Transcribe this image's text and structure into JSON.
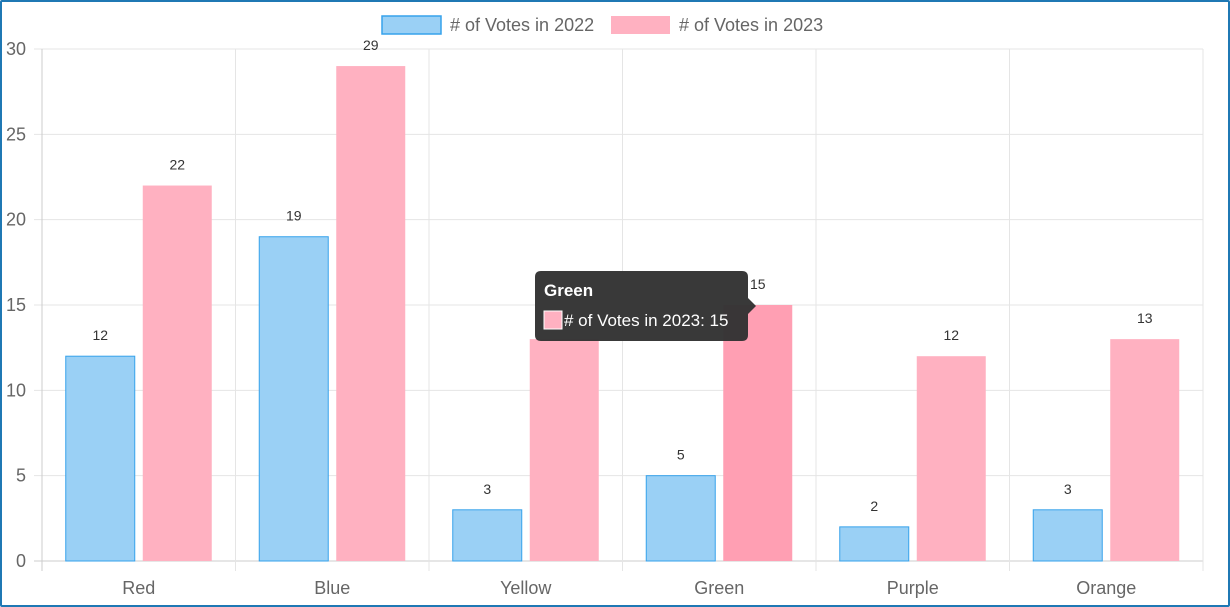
{
  "chart_data": {
    "type": "bar",
    "categories": [
      "Red",
      "Blue",
      "Yellow",
      "Green",
      "Purple",
      "Orange"
    ],
    "series": [
      {
        "name": "# of Votes in 2022",
        "values": [
          12,
          19,
          3,
          5,
          2,
          3
        ],
        "fill": "#9ad0f5",
        "stroke": "#36a2eb"
      },
      {
        "name": "# of Votes in 2023",
        "values": [
          22,
          29,
          13,
          15,
          12,
          13
        ],
        "fill": "#ffb1c1",
        "stroke": "#ff6384"
      }
    ],
    "ylim": [
      0,
      30
    ],
    "yticks": [
      0,
      5,
      10,
      15,
      20,
      25,
      30
    ],
    "grid": true,
    "legend": "top-center",
    "data_labels": true,
    "hovered": {
      "series_index": 1,
      "category_index": 3,
      "hover_fill": "#ff9fb3"
    }
  },
  "tooltip": {
    "title": "Green",
    "body": "# of Votes in 2023: 15"
  },
  "colors": {
    "frame_border": "#1f78b4",
    "grid": "#e5e5e5",
    "tooltip_bg": "#333333"
  }
}
